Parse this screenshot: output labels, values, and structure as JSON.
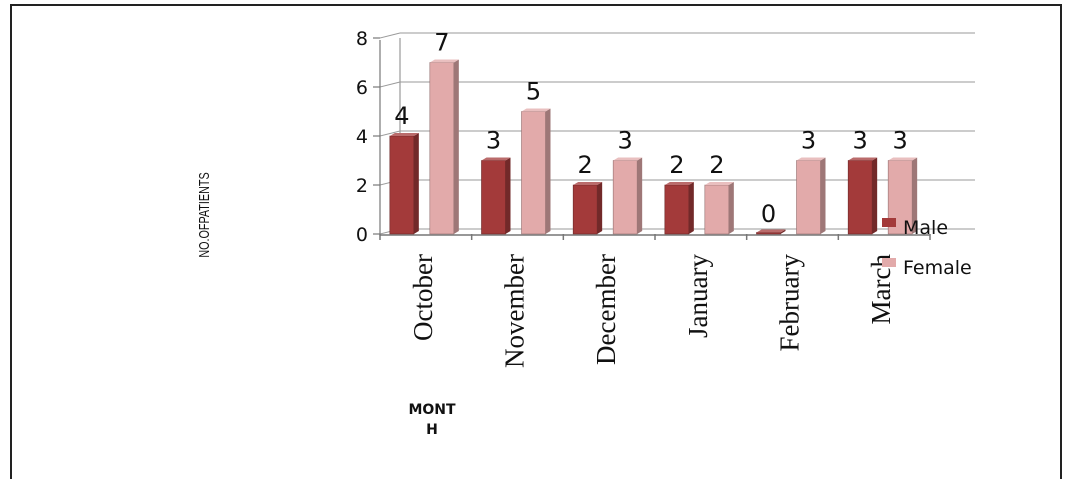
{
  "chart_data": {
    "type": "bar",
    "style": "3d-clustered-column",
    "categories": [
      "October",
      "November",
      "December",
      "January",
      "February",
      "March"
    ],
    "series": [
      {
        "name": "Male",
        "values": [
          4,
          3,
          2,
          2,
          0,
          3
        ],
        "color": "#a33a3a"
      },
      {
        "name": "Female",
        "values": [
          7,
          5,
          3,
          2,
          3,
          3
        ],
        "color": "#e2aaaa"
      }
    ],
    "yticks": [
      "0",
      "2",
      "4",
      "6",
      "8"
    ],
    "ylim": [
      0,
      8
    ],
    "ylabel": "NO.OFPATIENTS",
    "xlabel_lines": [
      "MONT",
      "H"
    ],
    "legend": "right",
    "grid": true
  }
}
